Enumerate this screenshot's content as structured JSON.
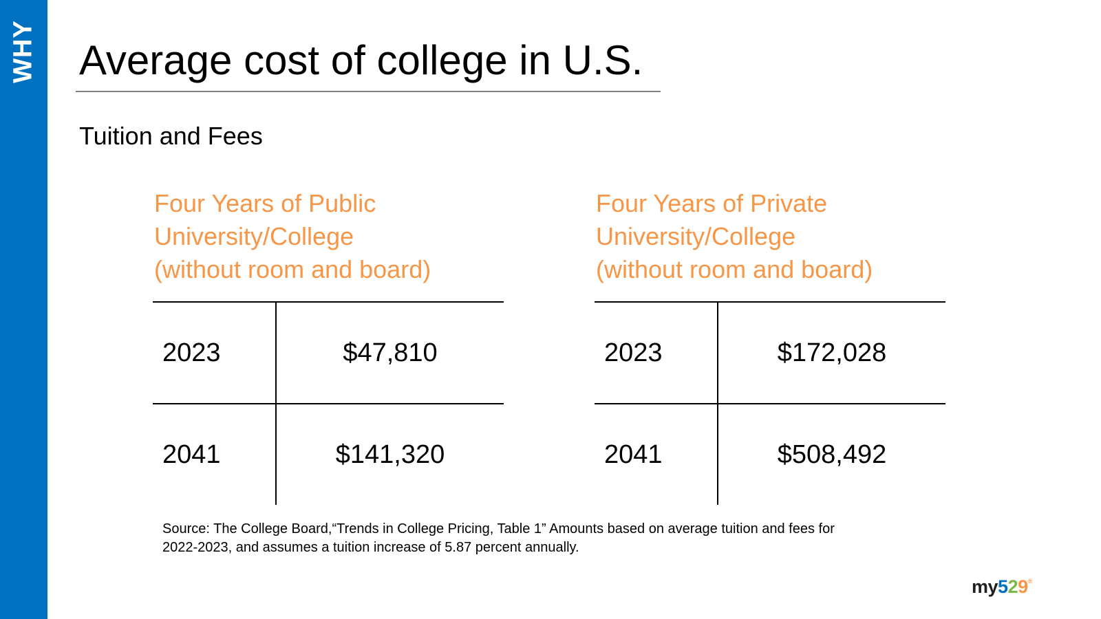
{
  "sidebar": {
    "label": "WHY"
  },
  "slide": {
    "title": "Average cost of college in U.S.",
    "subtitle": "Tuition and Fees"
  },
  "tables": {
    "public": {
      "heading_lines": [
        "Four Years of Public",
        "University/College",
        "(without room and board)"
      ],
      "rows": [
        {
          "year": "2023",
          "amount": "$47,810"
        },
        {
          "year": "2041",
          "amount": "$141,320"
        }
      ]
    },
    "private": {
      "heading_lines": [
        "Four Years of Private",
        "University/College",
        "(without room and board)"
      ],
      "rows": [
        {
          "year": "2023",
          "amount": "$172,028"
        },
        {
          "year": "2041",
          "amount": "$508,492"
        }
      ]
    }
  },
  "source": {
    "line1": "Source: The College Board,“Trends in College Pricing, Table 1” Amounts based on average tuition and fees for",
    "line2": "2022-2023, and assumes a tuition increase of 5.87 percent annually."
  },
  "logo": {
    "prefix": "my",
    "digit1": "5",
    "digit2": "2",
    "digit3": "9",
    "mark": "®"
  },
  "colors": {
    "sidebar": "#0070c0",
    "heading_accent": "#f79646",
    "logo_blue": "#0070c0",
    "logo_green": "#7ab648",
    "logo_orange": "#f79646"
  }
}
